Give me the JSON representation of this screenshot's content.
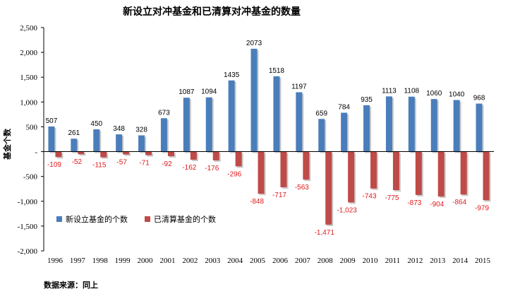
{
  "chart_data": {
    "type": "bar",
    "title": "新设立对冲基金和已清算对冲基金的数量",
    "ylabel": "基金个数",
    "xlabel": "",
    "ylim": [
      -2000,
      2500
    ],
    "yticks": [
      "2,500",
      "2,000",
      "1,500",
      "1,000",
      "500",
      "-",
      "-500",
      "-1,000",
      "-1,500",
      "-2,000"
    ],
    "ytick_values": [
      2500,
      2000,
      1500,
      1000,
      500,
      0,
      -500,
      -1000,
      -1500,
      -2000
    ],
    "categories": [
      "1996",
      "1997",
      "1998",
      "1999",
      "2000",
      "2001",
      "2002",
      "2003",
      "2004",
      "2005",
      "2006",
      "2007",
      "2008",
      "2009",
      "2010",
      "2011",
      "2012",
      "2013",
      "2014",
      "2015"
    ],
    "series": [
      {
        "name": "新设立基金的个数",
        "color": "#4a7ebb",
        "values": [
          507,
          261,
          450,
          348,
          328,
          673,
          1087,
          1094,
          1435,
          2073,
          1518,
          1197,
          659,
          784,
          935,
          1113,
          1108,
          1060,
          1040,
          968
        ],
        "labels": [
          "507",
          "261",
          "450",
          "348",
          "328",
          "673",
          "1087",
          "1094",
          "1435",
          "2073",
          "1518",
          "1197",
          "659",
          "784",
          "935",
          "1113",
          "1108",
          "1060",
          "1040",
          "968"
        ]
      },
      {
        "name": "已清算基金的个数",
        "color": "#be4b48",
        "values": [
          -109,
          -52,
          -115,
          -57,
          -71,
          -92,
          -162,
          -176,
          -296,
          -848,
          -717,
          -563,
          -1471,
          -1023,
          -743,
          -775,
          -873,
          -904,
          -864,
          -979
        ],
        "labels": [
          "-109",
          "-52",
          "-115",
          "-57",
          "-71",
          "-92",
          "-162",
          "-176",
          "-296",
          "-848",
          "-717",
          "-563",
          "-1,471",
          "-1,023",
          "-743",
          "-775",
          "-873",
          "-904",
          "-864",
          "-979"
        ]
      }
    ],
    "legend_position": "bottom-left",
    "grid": false
  },
  "source_note": "数据来源：同上"
}
